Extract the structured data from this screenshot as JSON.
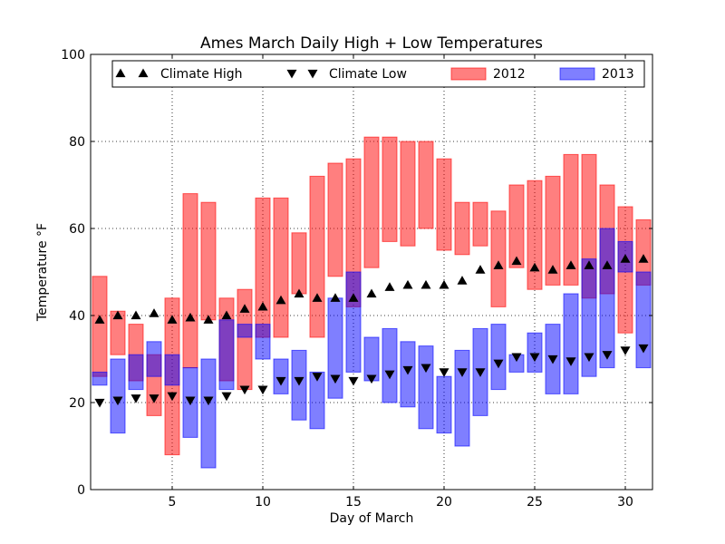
{
  "chart_data": {
    "type": "bar",
    "title": "Ames March Daily High + Low Temperatures",
    "xlabel": "Day of March",
    "ylabel": "Temperature °F",
    "xlim": [
      0.5,
      31.5
    ],
    "ylim": [
      0,
      100
    ],
    "x_ticks": [
      5,
      10,
      15,
      20,
      25,
      30
    ],
    "y_ticks": [
      0,
      20,
      40,
      60,
      80,
      100
    ],
    "grid": true,
    "legend_position": "top",
    "legend": [
      {
        "label": "Climate High",
        "kind": "marker-up"
      },
      {
        "label": "Climate Low",
        "kind": "marker-down"
      },
      {
        "label": "2012",
        "kind": "bar",
        "color": "#ff0000"
      },
      {
        "label": "2013",
        "kind": "bar",
        "color": "#0000ff"
      }
    ],
    "days": [
      1,
      2,
      3,
      4,
      5,
      6,
      7,
      8,
      9,
      10,
      11,
      12,
      13,
      14,
      15,
      16,
      17,
      18,
      19,
      20,
      21,
      22,
      23,
      24,
      25,
      26,
      27,
      28,
      29,
      30,
      31
    ],
    "series": [
      {
        "name": "2012",
        "color": "#ff0000",
        "low": [
          26,
          31,
          25,
          17,
          8,
          28,
          39,
          25,
          23,
          35,
          35,
          45,
          35,
          49,
          42,
          51,
          57,
          56,
          60,
          55,
          54,
          56,
          42,
          51,
          46,
          47,
          47,
          44,
          45,
          36,
          47
        ],
        "high": [
          49,
          41,
          38,
          31,
          44,
          68,
          66,
          44,
          46,
          67,
          67,
          59,
          72,
          75,
          76,
          81,
          81,
          80,
          80,
          76,
          66,
          66,
          64,
          70,
          71,
          72,
          77,
          77,
          70,
          65,
          62
        ]
      },
      {
        "name": "2013",
        "color": "#0000ff",
        "low": [
          24,
          13,
          23,
          26,
          24,
          12,
          5,
          23,
          35,
          30,
          22,
          16,
          14,
          21,
          27,
          25,
          20,
          19,
          14,
          13,
          10,
          17,
          23,
          27,
          27,
          22,
          22,
          26,
          28,
          50,
          28
        ],
        "high": [
          27,
          30,
          31,
          34,
          31,
          28,
          30,
          39,
          38,
          38,
          30,
          32,
          27,
          44,
          50,
          35,
          37,
          34,
          33,
          26,
          32,
          37,
          38,
          31,
          36,
          38,
          45,
          53,
          60,
          57,
          50
        ]
      },
      {
        "name": "Climate High",
        "values": [
          39,
          40,
          40,
          40.5,
          39,
          39.5,
          39,
          40,
          41.5,
          42,
          43.5,
          45,
          44,
          44,
          44,
          45,
          46.5,
          47,
          47,
          47,
          48,
          50.5,
          51.5,
          52.5,
          51,
          50.5,
          51.5,
          51.5,
          51.5,
          53,
          53
        ]
      },
      {
        "name": "Climate Low",
        "values": [
          20,
          20.5,
          21,
          21,
          21.5,
          20.5,
          20.5,
          21.5,
          23,
          23,
          25,
          25,
          26,
          25.5,
          25,
          25.5,
          26.5,
          27.5,
          28,
          27,
          27,
          27,
          29,
          30.5,
          30.5,
          30,
          29.5,
          30.5,
          31,
          32,
          32.5
        ]
      }
    ]
  }
}
